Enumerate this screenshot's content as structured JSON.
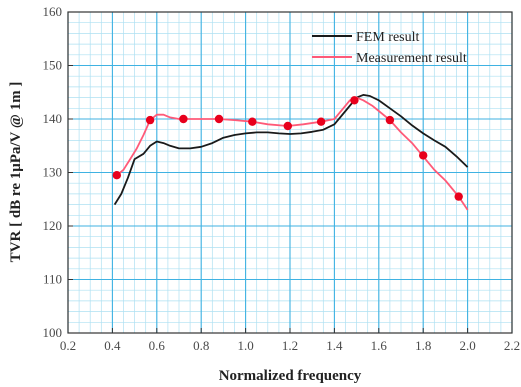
{
  "chart_data": {
    "type": "line",
    "xlabel": "Normalized frequency",
    "ylabel": "TVR [ dB re 1μPa/V @ 1m ]",
    "xlim": [
      0.2,
      2.2
    ],
    "ylim": [
      100,
      160
    ],
    "xticks": [
      "0.2",
      "0.4",
      "0.6",
      "0.8",
      "1.0",
      "1.2",
      "1.4",
      "1.6",
      "1.8",
      "2.0",
      "2.2"
    ],
    "yticks": [
      "100",
      "110",
      "120",
      "130",
      "140",
      "150",
      "160"
    ],
    "grid": true,
    "legend_position": "top-right",
    "series": [
      {
        "name": "FEM result",
        "color": "#1a1a1a",
        "x": [
          0.41,
          0.44,
          0.47,
          0.5,
          0.54,
          0.57,
          0.6,
          0.63,
          0.66,
          0.7,
          0.75,
          0.8,
          0.85,
          0.9,
          0.95,
          1.0,
          1.05,
          1.1,
          1.15,
          1.2,
          1.25,
          1.3,
          1.35,
          1.4,
          1.45,
          1.5,
          1.53,
          1.56,
          1.6,
          1.65,
          1.7,
          1.75,
          1.8,
          1.85,
          1.9,
          1.95,
          2.0
        ],
        "y": [
          124.0,
          126.0,
          129.0,
          132.5,
          133.5,
          135.0,
          135.8,
          135.5,
          135.0,
          134.5,
          134.5,
          134.8,
          135.5,
          136.5,
          137.0,
          137.3,
          137.5,
          137.5,
          137.3,
          137.2,
          137.3,
          137.6,
          138.0,
          139.0,
          141.5,
          144.0,
          144.5,
          144.3,
          143.5,
          142.0,
          140.5,
          138.8,
          137.3,
          136.0,
          134.8,
          133.0,
          131.0
        ]
      },
      {
        "name": "Measurement result",
        "color": "#ff5a78",
        "x": [
          0.42,
          0.45,
          0.48,
          0.51,
          0.54,
          0.57,
          0.6,
          0.63,
          0.66,
          0.7,
          0.75,
          0.8,
          0.88,
          0.95,
          1.03,
          1.1,
          1.19,
          1.26,
          1.34,
          1.4,
          1.44,
          1.47,
          1.5,
          1.53,
          1.57,
          1.6,
          1.65,
          1.7,
          1.75,
          1.8,
          1.85,
          1.9,
          1.96,
          2.0
        ],
        "y": [
          129.5,
          130.5,
          132.5,
          134.5,
          137.0,
          139.8,
          140.8,
          140.8,
          140.3,
          140.0,
          140.0,
          140.0,
          140.0,
          139.8,
          139.5,
          139.0,
          138.7,
          139.0,
          139.5,
          140.0,
          142.0,
          143.5,
          144.0,
          143.5,
          142.5,
          141.5,
          139.8,
          137.5,
          135.5,
          133.0,
          130.5,
          128.5,
          125.5,
          123.0
        ]
      },
      {
        "name": "measurement markers",
        "color": "#e8001c",
        "x": [
          0.42,
          0.57,
          0.72,
          0.88,
          1.03,
          1.19,
          1.34,
          1.49,
          1.65,
          1.8,
          1.96
        ],
        "y": [
          129.5,
          139.8,
          140.0,
          140.0,
          139.5,
          138.7,
          139.5,
          143.5,
          139.8,
          133.2,
          125.5
        ]
      }
    ]
  }
}
